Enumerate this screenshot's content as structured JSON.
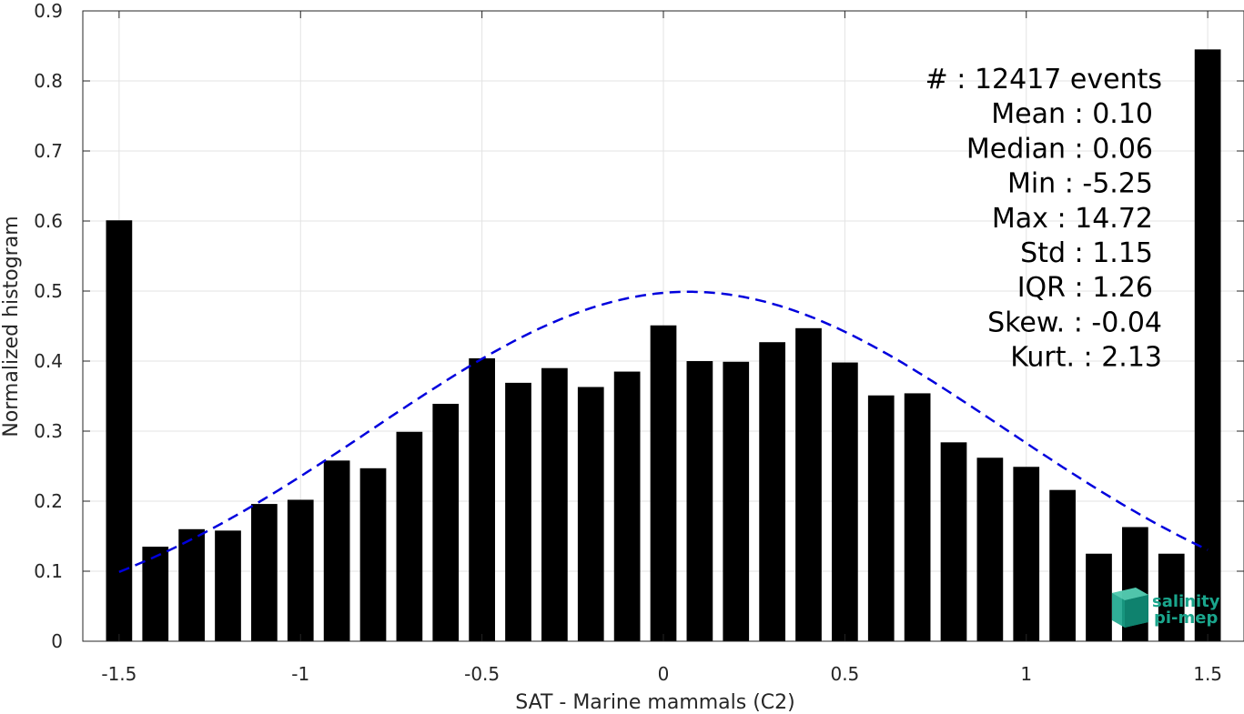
{
  "chart_data": {
    "type": "bar",
    "xlabel": "SAT - Marine mammals (C2)",
    "ylabel": "Normalized histogram",
    "xlim": [
      -1.6,
      1.6
    ],
    "ylim": [
      0,
      0.9
    ],
    "xticks": [
      -1.5,
      -1,
      -0.5,
      0,
      0.5,
      1,
      1.5
    ],
    "xtick_labels": [
      "-1.5",
      "-1",
      "-0.5",
      "0",
      "0.5",
      "1",
      "1.5"
    ],
    "yticks": [
      0,
      0.1,
      0.2,
      0.3,
      0.4,
      0.5,
      0.6,
      0.7,
      0.8,
      0.9
    ],
    "ytick_labels": [
      "0",
      "0.1",
      "0.2",
      "0.3",
      "0.4",
      "0.5",
      "0.6",
      "0.7",
      "0.8",
      "0.9"
    ],
    "grid": true,
    "bar_color": "#000000",
    "bins": [
      -1.5,
      -1.4,
      -1.3,
      -1.2,
      -1.1,
      -1.0,
      -0.9,
      -0.8,
      -0.7,
      -0.6,
      -0.5,
      -0.4,
      -0.3,
      -0.2,
      -0.1,
      0.0,
      0.1,
      0.2,
      0.3,
      0.4,
      0.5,
      0.6,
      0.7,
      0.8,
      0.9,
      1.0,
      1.1,
      1.2,
      1.3,
      1.4,
      1.5
    ],
    "values": [
      0.601,
      0.135,
      0.16,
      0.158,
      0.196,
      0.202,
      0.258,
      0.247,
      0.299,
      0.339,
      0.404,
      0.369,
      0.39,
      0.363,
      0.385,
      0.451,
      0.4,
      0.399,
      0.427,
      0.447,
      0.398,
      0.351,
      0.354,
      0.284,
      0.262,
      0.249,
      0.216,
      0.125,
      0.163,
      0.125,
      0.845
    ],
    "fit_curve": {
      "style": "dashed",
      "color": "#0000dd",
      "x_range": [
        -1.5,
        1.5
      ],
      "peak_x": 0.07,
      "peak_y": 0.499,
      "y_at_min_x": 0.099,
      "y_at_max_x": 0.12
    },
    "stats": [
      "#  : 12417 events",
      "Mean : 0.10",
      "Median : 0.06",
      "Min : -5.25",
      "Max : 14.72",
      "Std : 1.15",
      "IQR : 1.26",
      "Skew. : -0.04",
      "Kurt. : 2.13"
    ]
  },
  "logo": {
    "line1": "salinity",
    "line2": "pi-mep",
    "color": "#1aa58c"
  }
}
